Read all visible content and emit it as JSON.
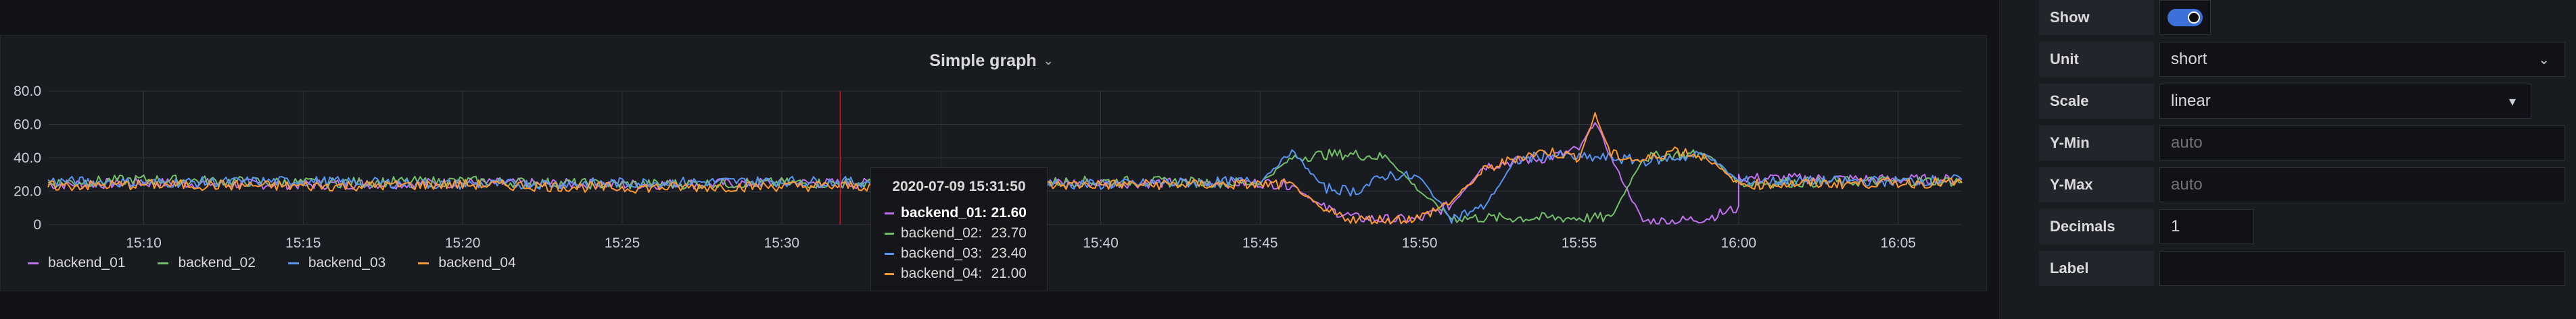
{
  "panel": {
    "title": "Simple graph"
  },
  "colors": {
    "backend_01": "#c071f0",
    "backend_02": "#73bf69",
    "backend_03": "#5794f2",
    "backend_04": "#ff9830",
    "grid": "#2f3238",
    "crosshair": "#c4162a",
    "toggle_on": "#3d71d9"
  },
  "chart_data": {
    "type": "line",
    "title": "Simple graph",
    "y_ticks": [
      "80.0",
      "60.0",
      "40.0",
      "20.0",
      "0"
    ],
    "ylim": [
      0,
      80
    ],
    "x_ticks": [
      "15:10",
      "15:15",
      "15:20",
      "15:25",
      "15:30",
      "15:35",
      "15:40",
      "15:45",
      "15:50",
      "15:55",
      "16:00",
      "16:05"
    ],
    "x_range_minutes": [
      "15:07",
      "16:07"
    ],
    "grid": true,
    "legend_position": "bottom-left",
    "crosshair_time": "15:31:50",
    "series": [
      {
        "name": "backend_01",
        "points": [
          [
            "15:07",
            24
          ],
          [
            "15:10",
            25
          ],
          [
            "15:15",
            24
          ],
          [
            "15:20",
            25
          ],
          [
            "15:25",
            24
          ],
          [
            "15:30",
            25
          ],
          [
            "15:35",
            24
          ],
          [
            "15:40",
            25
          ],
          [
            "15:45",
            25
          ],
          [
            "15:46",
            24
          ],
          [
            "15:47",
            10
          ],
          [
            "15:48",
            4
          ],
          [
            "15:49",
            3
          ],
          [
            "15:50",
            3
          ],
          [
            "15:51",
            12
          ],
          [
            "15:52",
            35
          ],
          [
            "15:53",
            38
          ],
          [
            "15:54",
            40
          ],
          [
            "15:55",
            45
          ],
          [
            "15:55.5",
            62
          ],
          [
            "15:56",
            40
          ],
          [
            "15:57",
            2
          ],
          [
            "15:58",
            2
          ],
          [
            "15:59",
            4
          ],
          [
            "15:60",
            10
          ],
          [
            "16:00",
            28
          ],
          [
            "16:05",
            27
          ],
          [
            "16:07",
            27
          ]
        ]
      },
      {
        "name": "backend_02",
        "points": [
          [
            "15:07",
            25
          ],
          [
            "15:10",
            27
          ],
          [
            "15:15",
            25
          ],
          [
            "15:20",
            26
          ],
          [
            "15:25",
            24
          ],
          [
            "15:30",
            25
          ],
          [
            "15:35",
            24
          ],
          [
            "15:40",
            26
          ],
          [
            "15:45",
            25
          ],
          [
            "15:46",
            40
          ],
          [
            "15:47",
            42
          ],
          [
            "15:48",
            42
          ],
          [
            "15:49",
            40
          ],
          [
            "15:50",
            20
          ],
          [
            "15:51",
            4
          ],
          [
            "15:52",
            4
          ],
          [
            "15:53",
            4
          ],
          [
            "15:54",
            4
          ],
          [
            "15:55",
            4
          ],
          [
            "15:56",
            4
          ],
          [
            "15:57",
            40
          ],
          [
            "15:58",
            42
          ],
          [
            "15:59",
            42
          ],
          [
            "16:00",
            25
          ],
          [
            "16:05",
            26
          ],
          [
            "16:07",
            26
          ]
        ]
      },
      {
        "name": "backend_03",
        "points": [
          [
            "15:07",
            26
          ],
          [
            "15:10",
            25
          ],
          [
            "15:15",
            26
          ],
          [
            "15:20",
            24
          ],
          [
            "15:25",
            25
          ],
          [
            "15:30",
            26
          ],
          [
            "15:35",
            25
          ],
          [
            "15:40",
            24
          ],
          [
            "15:45",
            26
          ],
          [
            "15:46",
            44
          ],
          [
            "15:47",
            22
          ],
          [
            "15:48",
            20
          ],
          [
            "15:49",
            30
          ],
          [
            "15:50",
            28
          ],
          [
            "15:51",
            4
          ],
          [
            "15:52",
            10
          ],
          [
            "15:53",
            38
          ],
          [
            "15:54",
            42
          ],
          [
            "15:55",
            40
          ],
          [
            "15:56",
            40
          ],
          [
            "15:57",
            38
          ],
          [
            "15:58",
            40
          ],
          [
            "15:59",
            42
          ],
          [
            "16:00",
            26
          ],
          [
            "16:05",
            26
          ],
          [
            "16:07",
            27
          ]
        ]
      },
      {
        "name": "backend_04",
        "points": [
          [
            "15:07",
            23
          ],
          [
            "15:10",
            24
          ],
          [
            "15:15",
            23
          ],
          [
            "15:20",
            24
          ],
          [
            "15:25",
            22
          ],
          [
            "15:30",
            23
          ],
          [
            "15:35",
            23
          ],
          [
            "15:40",
            24
          ],
          [
            "15:45",
            24
          ],
          [
            "15:46",
            24
          ],
          [
            "15:47",
            8
          ],
          [
            "15:48",
            3
          ],
          [
            "15:49",
            3
          ],
          [
            "15:50",
            4
          ],
          [
            "15:51",
            14
          ],
          [
            "15:52",
            32
          ],
          [
            "15:53",
            40
          ],
          [
            "15:54",
            44
          ],
          [
            "15:55",
            40
          ],
          [
            "15:55.5",
            66
          ],
          [
            "15:56",
            42
          ],
          [
            "15:57",
            38
          ],
          [
            "15:58",
            45
          ],
          [
            "15:59",
            40
          ],
          [
            "16:00",
            24
          ],
          [
            "16:05",
            25
          ],
          [
            "16:07",
            25
          ]
        ]
      }
    ]
  },
  "legend": [
    "backend_01",
    "backend_02",
    "backend_03",
    "backend_04"
  ],
  "tooltip": {
    "time": "2020-07-09 15:31:50",
    "rows": [
      {
        "name": "backend_01:",
        "value": "21.60"
      },
      {
        "name": "backend_02:",
        "value": "23.70"
      },
      {
        "name": "backend_03:",
        "value": "23.40"
      },
      {
        "name": "backend_04:",
        "value": "21.00"
      }
    ]
  },
  "options": {
    "show_label": "Show",
    "unit_label": "Unit",
    "unit_value": "short",
    "scale_label": "Scale",
    "scale_value": "linear",
    "ymin_label": "Y-Min",
    "ymin_placeholder": "auto",
    "ymax_label": "Y-Max",
    "ymax_placeholder": "auto",
    "decimals_label": "Decimals",
    "decimals_value": "1",
    "label_label": "Label",
    "label_value": ""
  }
}
